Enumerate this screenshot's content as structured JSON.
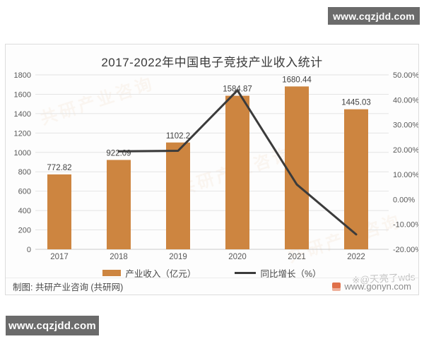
{
  "page": {
    "top_badge": "www.cqzjdd.com",
    "bottom_badge": "www.cqzjdd.com",
    "diagonal_watermark": "共研产业咨询"
  },
  "chart_data": {
    "type": "bar",
    "title": "2017-2022年中国电子竞技产业收入统计",
    "categories": [
      "2017",
      "2018",
      "2019",
      "2020",
      "2021",
      "2022"
    ],
    "series": [
      {
        "name": "产业收入（亿元）",
        "type": "bar",
        "axis": "left",
        "values": [
          772.82,
          922.09,
          1102.2,
          1584.87,
          1680.44,
          1445.03
        ],
        "labels": [
          "772.82",
          "922.09",
          "1102.2",
          "1584.87",
          "1680.44",
          "1445.03"
        ],
        "color": "#cd8540"
      },
      {
        "name": "同比增长（%）",
        "type": "line",
        "axis": "right",
        "values": [
          null,
          19.31,
          19.53,
          43.79,
          6.03,
          -14.01
        ],
        "color": "#3b3b3b"
      }
    ],
    "left_axis": {
      "min": 0,
      "max": 1800,
      "tick_labels_top_down": [
        "1800",
        "1600",
        "1400",
        "1200",
        "1000",
        "800",
        "600",
        "400",
        "200",
        "0"
      ]
    },
    "right_axis": {
      "min": -20,
      "max": 50,
      "tick_labels_top_down": [
        "50.00%",
        "40.00%",
        "30.00%",
        "20.00%",
        "10.00%",
        "0.00%",
        "-10.00%",
        "-20.00%"
      ]
    },
    "grid": true,
    "legend_position": "bottom"
  },
  "footer": {
    "credit": "制图: 共研产业咨询 (共研网)",
    "site": "www.gonyn.com",
    "watermark_gray": "※@天亮了wds"
  },
  "colors": {
    "bar": "#cd8540",
    "line": "#3b3b3b",
    "badge_bg": "#6b6b6b",
    "grid": "#e4e4e4",
    "zero_axis": "#c9c9c9"
  }
}
